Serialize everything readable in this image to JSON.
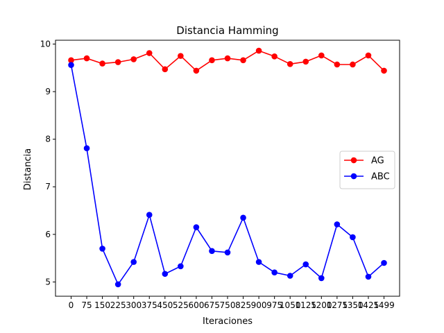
{
  "chart_data": {
    "type": "line",
    "title": "Distancia Hamming",
    "xlabel": "Iteraciones",
    "ylabel": "Distancia",
    "x": [
      0,
      75,
      150,
      225,
      300,
      375,
      450,
      525,
      600,
      675,
      750,
      825,
      900,
      975,
      1050,
      1125,
      1200,
      1275,
      1350,
      1425,
      1499
    ],
    "ylim": [
      4.7,
      10.08
    ],
    "yticks": [
      5,
      6,
      7,
      8,
      9,
      10
    ],
    "grid": false,
    "legend_position": "center-right",
    "series": [
      {
        "name": "AG",
        "color": "#ff0000",
        "values": [
          9.66,
          9.7,
          9.59,
          9.62,
          9.68,
          9.81,
          9.47,
          9.75,
          9.44,
          9.66,
          9.7,
          9.66,
          9.86,
          9.74,
          9.58,
          9.63,
          9.76,
          9.57,
          9.57,
          9.76,
          9.44
        ]
      },
      {
        "name": "ABC",
        "color": "#0000ff",
        "values": [
          9.56,
          7.81,
          5.7,
          4.95,
          5.42,
          6.41,
          5.17,
          5.33,
          6.15,
          5.65,
          5.62,
          6.35,
          5.42,
          5.2,
          5.13,
          5.37,
          5.08,
          6.21,
          5.94,
          5.11,
          5.4
        ]
      }
    ]
  }
}
